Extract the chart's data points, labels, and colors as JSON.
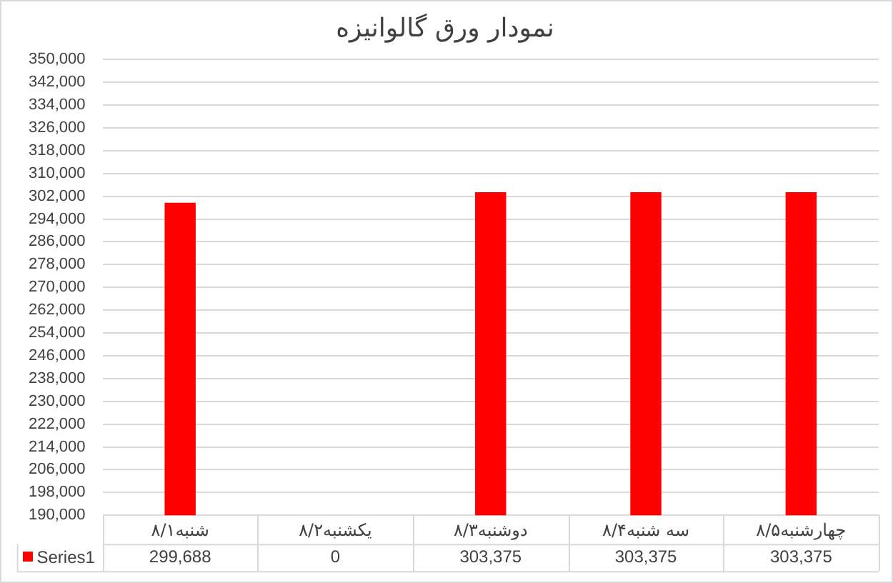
{
  "chart_data": {
    "type": "bar",
    "title": "نمودار ورق گالوانیزه",
    "categories": [
      "شنبه۸/۱",
      "یکشنبه۸/۲",
      "دوشنبه۸/۳",
      "سه شنبه۸/۴",
      "چهارشنبه۸/۵"
    ],
    "series": [
      {
        "name": "Series1",
        "color": "#ff0000",
        "values": [
          299688,
          null,
          303375,
          303375,
          303375
        ],
        "value_labels": [
          "299,688",
          "0",
          "303,375",
          "303,375",
          "303,375"
        ]
      }
    ],
    "ylim": [
      190000,
      350000
    ],
    "yticks": [
      {
        "value": 190000,
        "label": "190,000"
      },
      {
        "value": 198000,
        "label": "198,000"
      },
      {
        "value": 206000,
        "label": "206,000"
      },
      {
        "value": 214000,
        "label": "214,000"
      },
      {
        "value": 222000,
        "label": "222,000"
      },
      {
        "value": 230000,
        "label": "230,000"
      },
      {
        "value": 238000,
        "label": "238,000"
      },
      {
        "value": 246000,
        "label": "246,000"
      },
      {
        "value": 254000,
        "label": "254,000"
      },
      {
        "value": 262000,
        "label": "262,000"
      },
      {
        "value": 270000,
        "label": "270,000"
      },
      {
        "value": 278000,
        "label": "278,000"
      },
      {
        "value": 286000,
        "label": "286,000"
      },
      {
        "value": 294000,
        "label": "294,000"
      },
      {
        "value": 302000,
        "label": "302,000"
      },
      {
        "value": 310000,
        "label": "310,000"
      },
      {
        "value": 318000,
        "label": "318,000"
      },
      {
        "value": 326000,
        "label": "326,000"
      },
      {
        "value": 334000,
        "label": "334,000"
      },
      {
        "value": 342000,
        "label": "342,000"
      },
      {
        "value": 350000,
        "label": "350,000"
      }
    ],
    "grid": "y",
    "legend": "bottom left"
  }
}
